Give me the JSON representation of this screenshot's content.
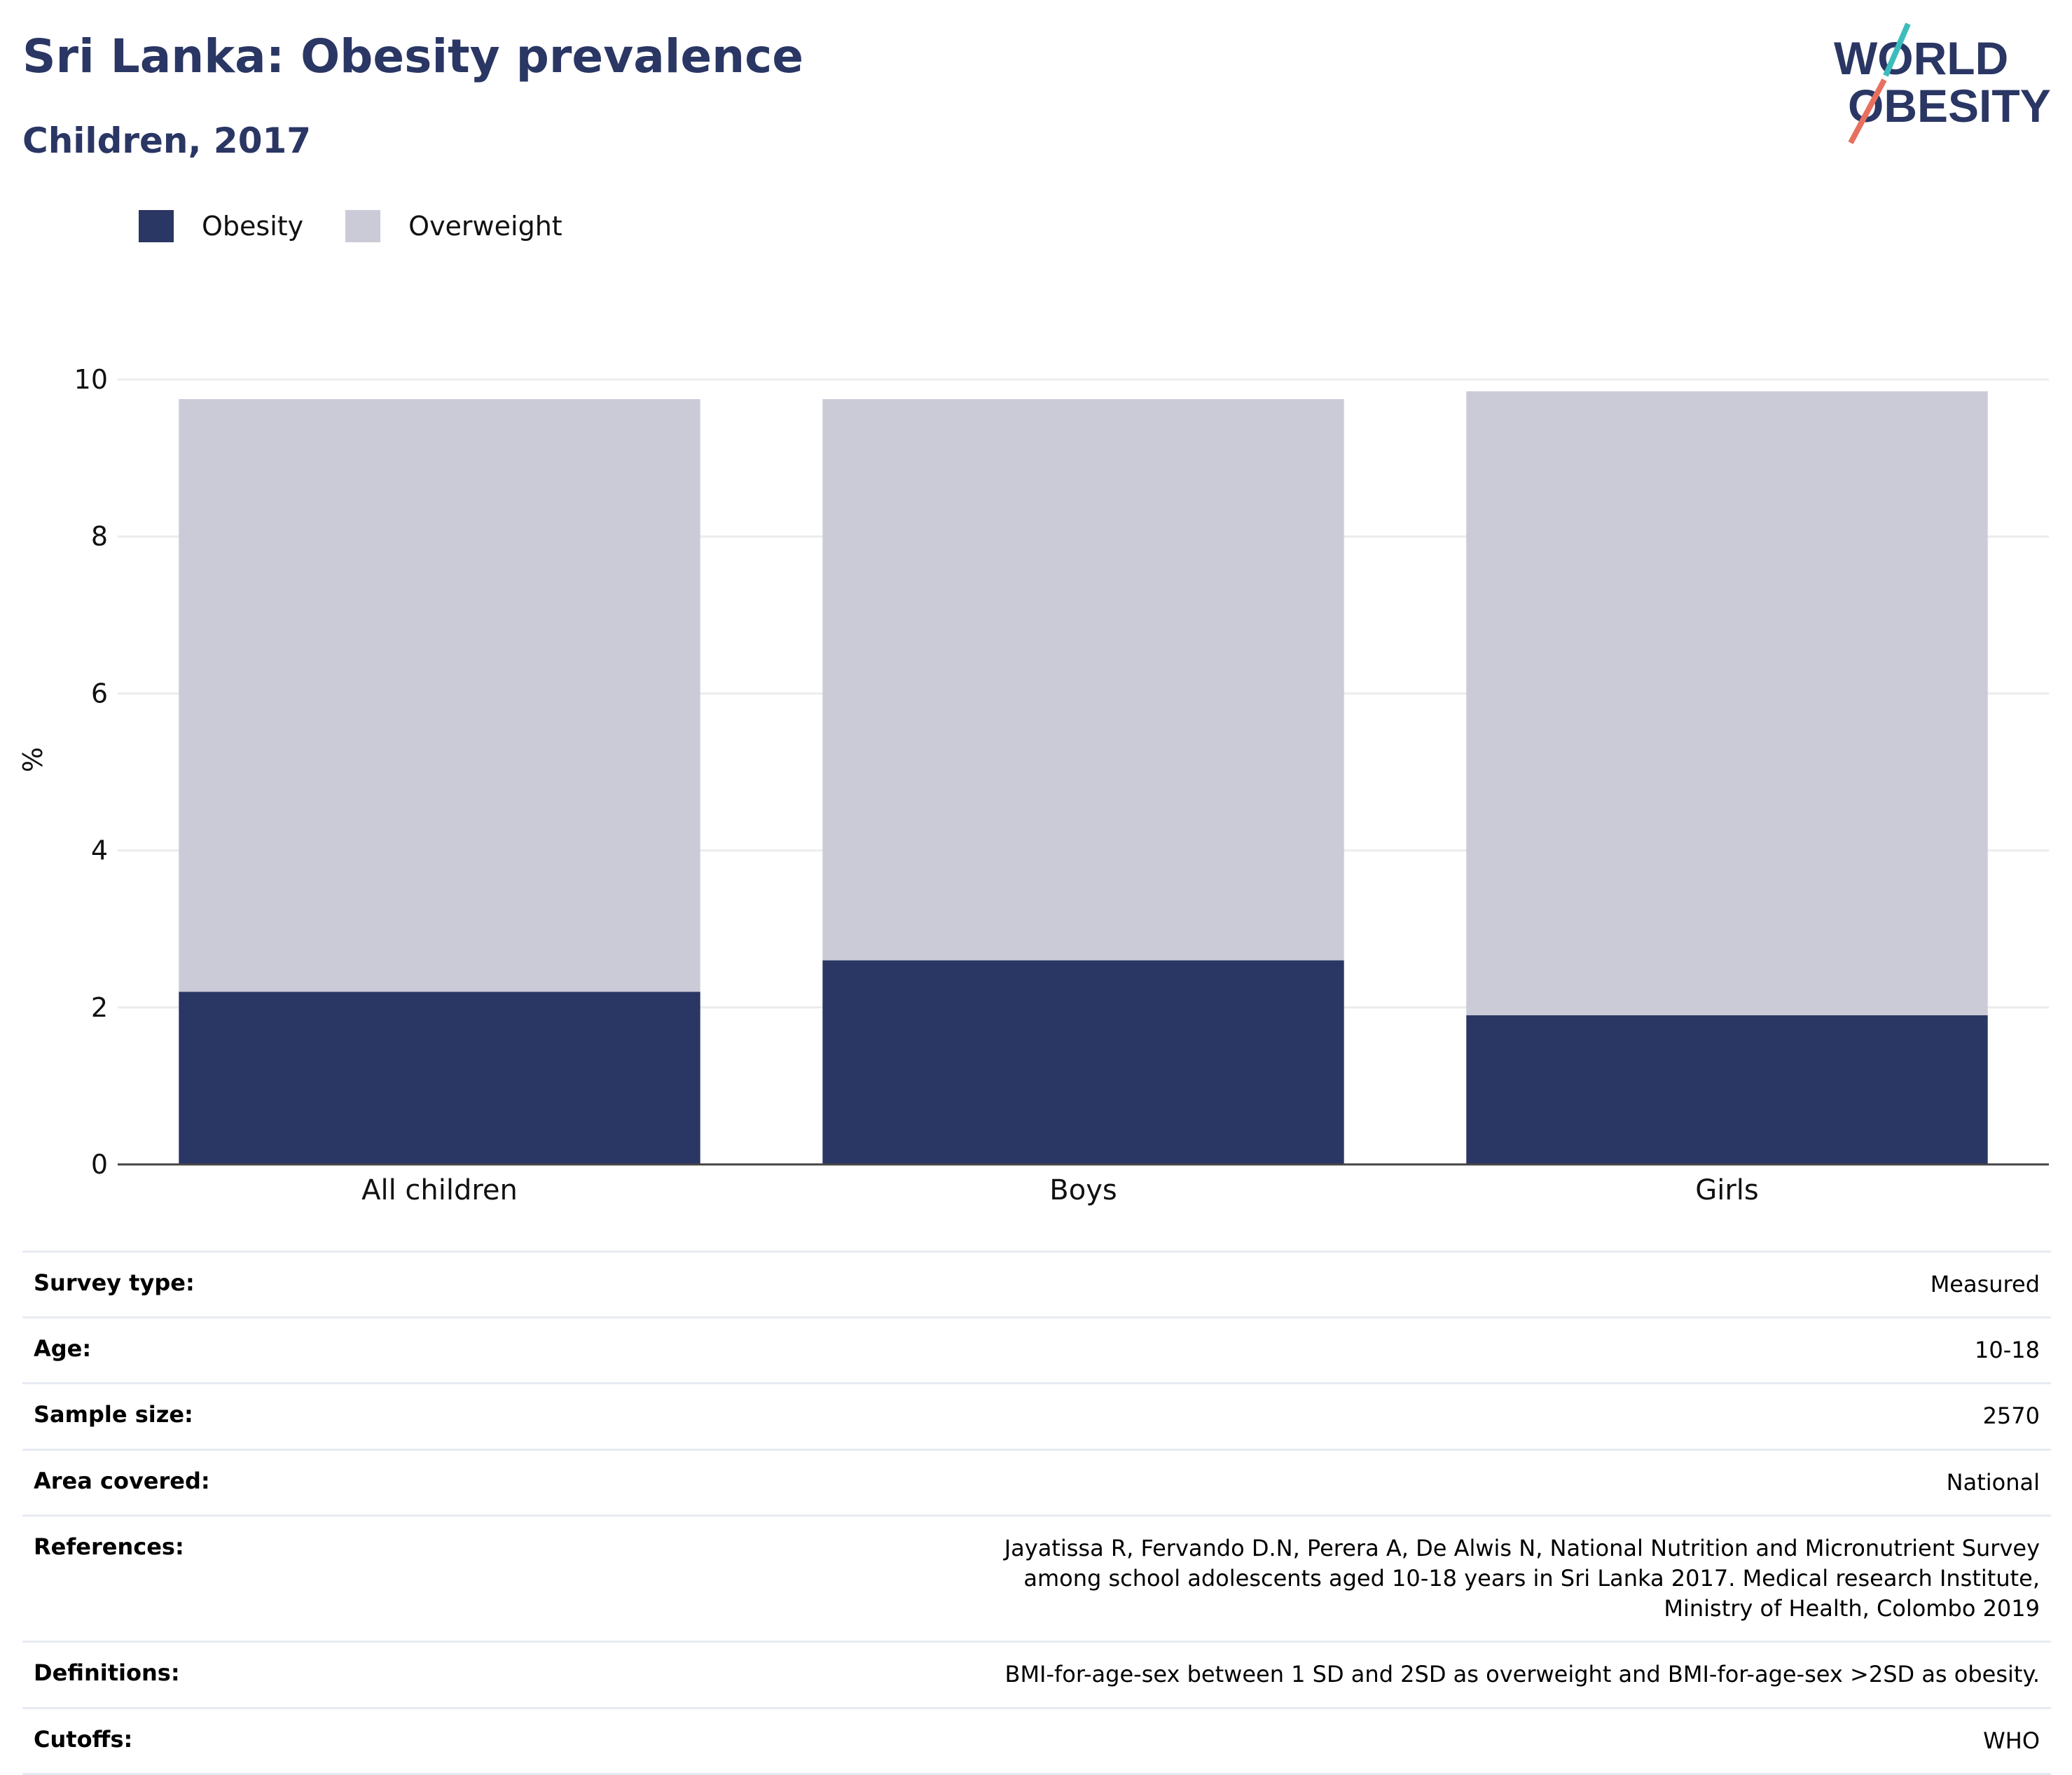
{
  "header": {
    "title": "Sri Lanka: Obesity prevalence",
    "subtitle": "Children, 2017"
  },
  "logo": {
    "line1": "WORLD",
    "line2": "OBESITY"
  },
  "legend": [
    {
      "label": "Obesity",
      "color": "#2a3663"
    },
    {
      "label": "Overweight",
      "color": "#cacbd7"
    }
  ],
  "chart_data": {
    "type": "bar",
    "stacked": true,
    "categories": [
      "All children",
      "Boys",
      "Girls"
    ],
    "series": [
      {
        "name": "Obesity",
        "color": "#2a3663",
        "values": [
          2.2,
          2.6,
          1.9
        ]
      },
      {
        "name": "Overweight",
        "color": "#cacbd7",
        "values": [
          7.55,
          7.15,
          7.95
        ]
      }
    ],
    "totals": [
      9.75,
      9.75,
      9.85
    ],
    "ylabel": "%",
    "ylim": [
      0,
      10
    ],
    "yticks": [
      0,
      2,
      4,
      6,
      8,
      10
    ],
    "grid": true,
    "legend_position": "top-left"
  },
  "meta": [
    {
      "key": "Survey type:",
      "value": "Measured"
    },
    {
      "key": "Age:",
      "value": "10-18"
    },
    {
      "key": "Sample size:",
      "value": "2570"
    },
    {
      "key": "Area covered:",
      "value": "National"
    },
    {
      "key": "References:",
      "value": "Jayatissa R, Fervando D.N, Perera A, De Alwis N, National Nutrition and Micronutrient Survey among school adolescents aged 10-18 years in Sri Lanka 2017. Medical research Institute, Ministry of Health, Colombo 2019"
    },
    {
      "key": "Definitions:",
      "value": "BMI-for-age-sex between 1 SD and 2SD as overweight and BMI-for-age-sex >2SD as obesity."
    },
    {
      "key": "Cutoffs:",
      "value": "WHO"
    }
  ]
}
